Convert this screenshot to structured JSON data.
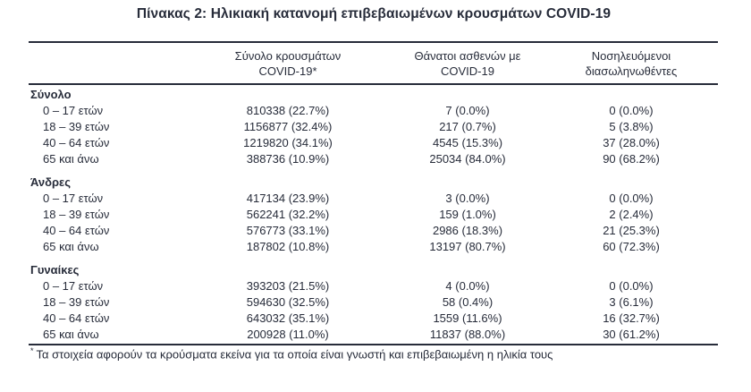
{
  "title": "Πίνακας 2: Ηλικιακή κατανομή επιβεβαιωμένων κρουσμάτων COVID-19",
  "table": {
    "column_headers": [
      {
        "line1": "Σύνολο κρουσμάτων",
        "line2": "COVID-19*"
      },
      {
        "line1": "Θάνατοι ασθενών με",
        "line2": "COVID-19"
      },
      {
        "line1": "Νοσηλευόμενοι",
        "line2": "διασωληνωθέντες"
      }
    ],
    "sections": [
      {
        "label": "Σύνολο",
        "rows": [
          {
            "label": "0 – 17 ετών",
            "cases": "810338 (22.7%)",
            "deaths": "7 (0.0%)",
            "intubated": "0 (0.0%)"
          },
          {
            "label": "18 – 39 ετών",
            "cases": "1156877 (32.4%)",
            "deaths": "217 (0.7%)",
            "intubated": "5 (3.8%)"
          },
          {
            "label": "40 – 64 ετών",
            "cases": "1219820 (34.1%)",
            "deaths": "4545 (15.3%)",
            "intubated": "37 (28.0%)"
          },
          {
            "label": "65 και άνω",
            "cases": "388736 (10.9%)",
            "deaths": "25034 (84.0%)",
            "intubated": "90 (68.2%)"
          }
        ]
      },
      {
        "label": "Άνδρες",
        "rows": [
          {
            "label": "0 – 17 ετών",
            "cases": "417134 (23.9%)",
            "deaths": "3 (0.0%)",
            "intubated": "0 (0.0%)"
          },
          {
            "label": "18 – 39 ετών",
            "cases": "562241 (32.2%)",
            "deaths": "159 (1.0%)",
            "intubated": "2 (2.4%)"
          },
          {
            "label": "40 – 64 ετών",
            "cases": "576773 (33.1%)",
            "deaths": "2986 (18.3%)",
            "intubated": "21 (25.3%)"
          },
          {
            "label": "65 και άνω",
            "cases": "187802 (10.8%)",
            "deaths": "13197 (80.7%)",
            "intubated": "60 (72.3%)"
          }
        ]
      },
      {
        "label": "Γυναίκες",
        "rows": [
          {
            "label": "0 – 17 ετών",
            "cases": "393203 (21.5%)",
            "deaths": "4 (0.0%)",
            "intubated": "0 (0.0%)"
          },
          {
            "label": "18 – 39 ετών",
            "cases": "594630 (32.5%)",
            "deaths": "58 (0.4%)",
            "intubated": "3 (6.1%)"
          },
          {
            "label": "40 – 64 ετών",
            "cases": "643032 (35.1%)",
            "deaths": "1559 (11.6%)",
            "intubated": "16 (32.7%)"
          },
          {
            "label": "65 και άνω",
            "cases": "200928 (11.0%)",
            "deaths": "11837 (88.0%)",
            "intubated": "30 (61.2%)"
          }
        ]
      }
    ],
    "footnote_marker": "*",
    "footnote": "Τα στοιχεία αφορούν τα κρούσματα εκείνα για τα οποία είναι γνωστή και επιβεβαιωμένη η ηλικία τους"
  },
  "colors": {
    "text": "#272c3a",
    "rule": "#272c3a",
    "background": "#ffffff"
  }
}
